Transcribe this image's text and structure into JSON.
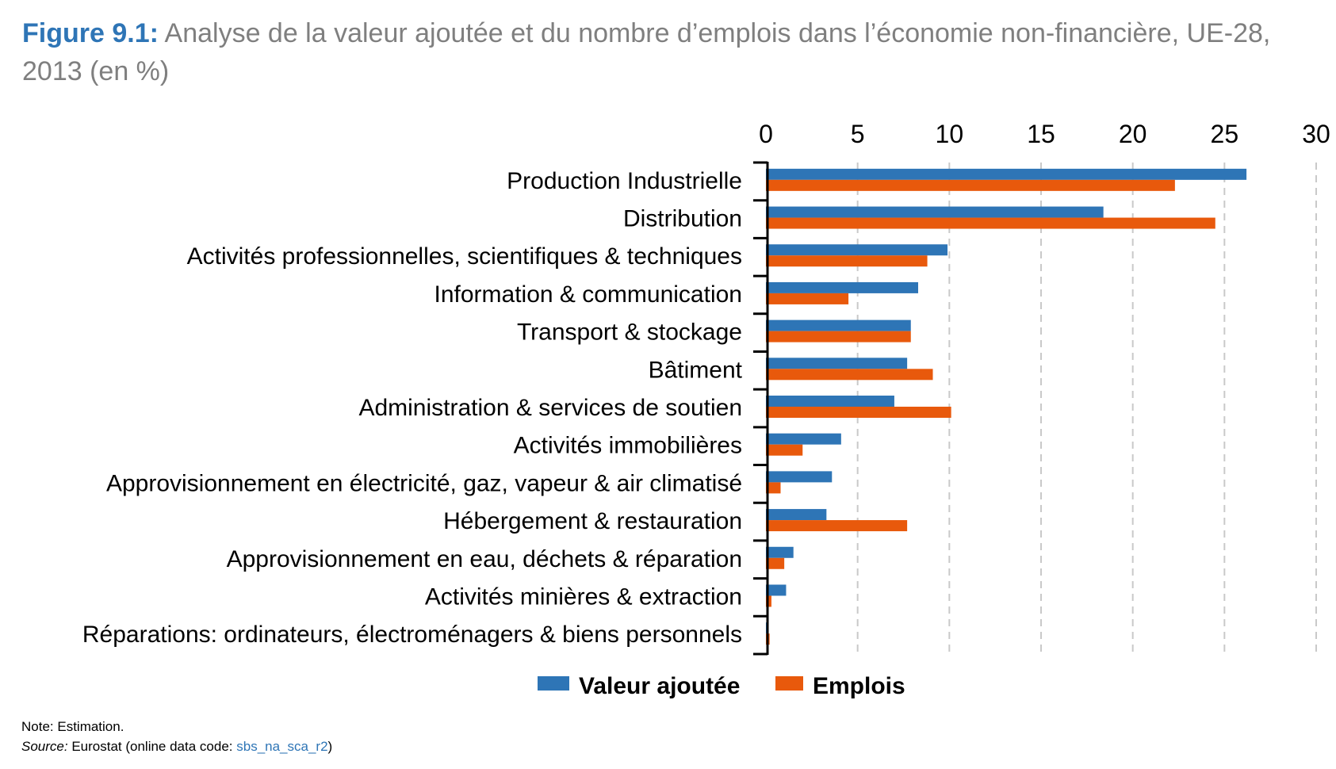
{
  "title": {
    "figure_label": "Figure 9.1:",
    "text": "Analyse de la valeur ajoutée et du nombre d’emplois dans l’économie non-financière, UE-28, 2013 (en %)"
  },
  "chart_data": {
    "type": "bar",
    "orientation": "horizontal",
    "categories": [
      "Production Industrielle",
      "Distribution",
      "Activités professionnelles, scientifiques & techniques",
      "Information & communication",
      "Transport & stockage",
      "Bâtiment",
      "Administration & services de soutien",
      "Activités immobilières",
      "Approvisionnement en électricité, gaz, vapeur & air climatisé",
      "Hébergement & restauration",
      "Approvisionnement en eau, déchets & réparation",
      "Activités minières & extraction",
      "Réparations: ordinateurs, électroménagers & biens personnels"
    ],
    "series": [
      {
        "name": "Valeur ajoutée",
        "color": "#2e75b6",
        "values": [
          26.2,
          18.4,
          9.9,
          8.3,
          7.9,
          7.7,
          7.0,
          4.1,
          3.6,
          3.3,
          1.5,
          1.1,
          0.1
        ]
      },
      {
        "name": "Emplois",
        "color": "#e8590c",
        "values": [
          22.3,
          24.5,
          8.8,
          4.5,
          7.9,
          9.1,
          10.1,
          2.0,
          0.8,
          7.7,
          1.0,
          0.3,
          0.2
        ]
      }
    ],
    "xlim": [
      0,
      30
    ],
    "xticks": [
      "0",
      "5",
      "10",
      "15",
      "20",
      "25",
      "30"
    ],
    "grid": "vertical-dashed",
    "legend_position": "bottom"
  },
  "notes": {
    "note": "Note: Estimation.",
    "source_label": "Source:",
    "source_text": " Eurostat (online data code: ",
    "source_code": "sbs_na_sca_r2",
    "source_end": ")"
  }
}
